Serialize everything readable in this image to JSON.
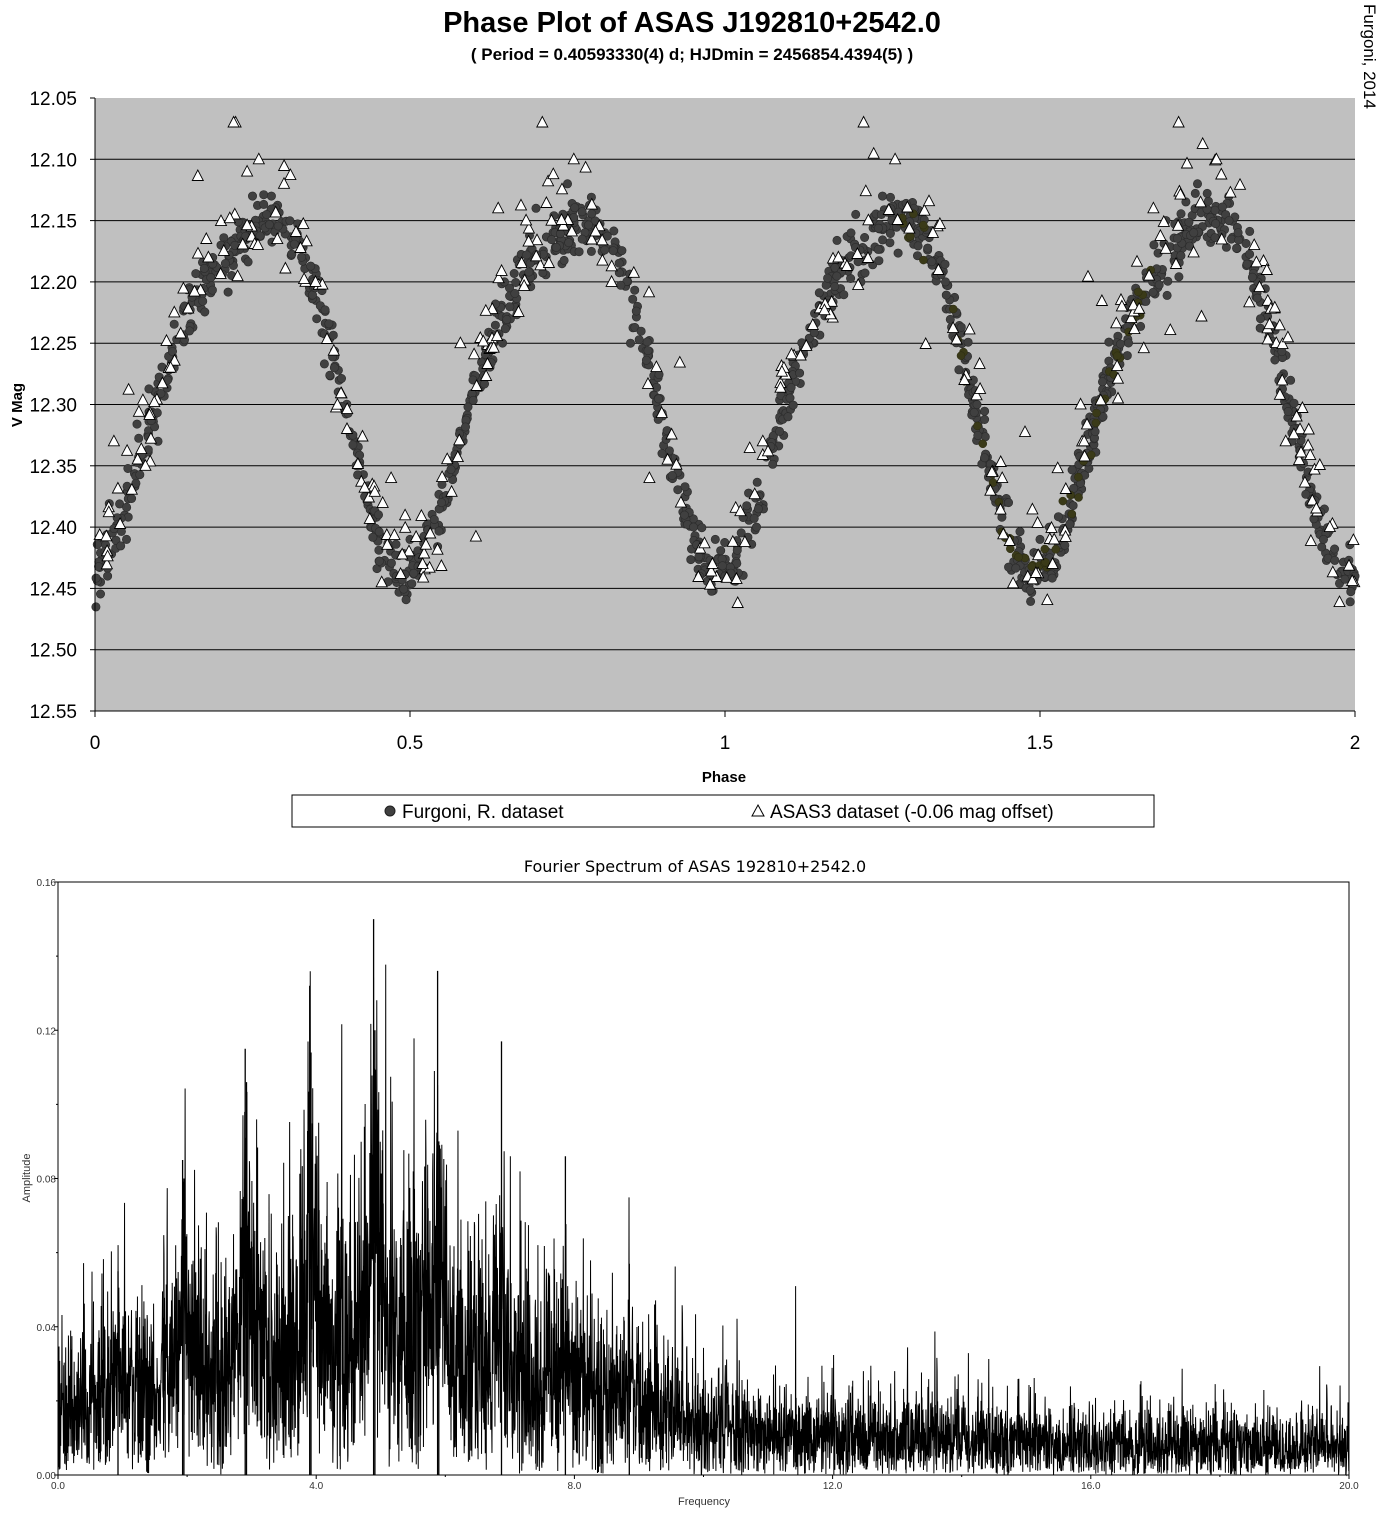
{
  "chart_data": [
    {
      "type": "scatter",
      "title": "Phase Plot of ASAS J192810+2542.0",
      "subtitle": "( Period =  0.40593330(4) d; HJDmin = 2456854.4394(5) )",
      "credit": "Furgoni, 2014",
      "xlabel": "Phase",
      "ylabel": "V Mag",
      "xlim": [
        0,
        2
      ],
      "ylim": [
        12.05,
        12.55
      ],
      "y_inverted": true,
      "x_ticks": [
        "0",
        "0.5",
        "1",
        "1.5",
        "2"
      ],
      "y_ticks": [
        "12.05",
        "12.10",
        "12.15",
        "12.20",
        "12.25",
        "12.30",
        "12.35",
        "12.40",
        "12.45",
        "12.50",
        "12.55"
      ],
      "grid": "horizontal",
      "legend_position": "bottom",
      "colors": {
        "plot_background": "#c0c0c0",
        "furgoni_marker": "#404040",
        "asas_marker": "#ffffff"
      },
      "series": [
        {
          "name": "Furgoni, R. dataset",
          "marker": "circle",
          "model": {
            "mean": 12.275,
            "amp1": 0.14,
            "amp2": 0.025,
            "period_phase": 0.5
          },
          "points": [
            [
              0.02,
              12.44
            ],
            [
              0.05,
              12.41
            ],
            [
              0.1,
              12.33
            ],
            [
              0.15,
              12.24
            ],
            [
              0.2,
              12.17
            ],
            [
              0.25,
              12.13
            ],
            [
              0.28,
              12.13
            ],
            [
              0.32,
              12.16
            ],
            [
              0.38,
              12.27
            ],
            [
              0.42,
              12.35
            ],
            [
              0.45,
              12.39
            ],
            [
              0.5,
              12.41
            ],
            [
              0.55,
              12.38
            ],
            [
              0.6,
              12.28
            ],
            [
              0.65,
              12.2
            ],
            [
              0.7,
              12.14
            ],
            [
              0.75,
              12.12
            ],
            [
              0.8,
              12.16
            ],
            [
              0.85,
              12.25
            ],
            [
              0.9,
              12.34
            ],
            [
              0.95,
              12.4
            ],
            [
              1.0,
              12.44
            ],
            [
              1.05,
              12.4
            ],
            [
              1.1,
              12.31
            ],
            [
              1.15,
              12.22
            ],
            [
              1.2,
              12.16
            ],
            [
              1.25,
              12.13
            ],
            [
              1.3,
              12.14
            ],
            [
              1.35,
              12.2
            ],
            [
              1.4,
              12.3
            ],
            [
              1.45,
              12.38
            ],
            [
              1.5,
              12.41
            ],
            [
              1.55,
              12.39
            ],
            [
              1.6,
              12.31
            ],
            [
              1.65,
              12.22
            ],
            [
              1.7,
              12.15
            ],
            [
              1.75,
              12.12
            ],
            [
              1.8,
              12.15
            ],
            [
              1.85,
              12.23
            ],
            [
              1.9,
              12.33
            ],
            [
              1.95,
              12.41
            ],
            [
              2.0,
              12.44
            ]
          ]
        },
        {
          "name": "ASAS3 dataset (-0.06 mag offset)",
          "marker": "triangle",
          "model": {
            "mean": 12.275,
            "amp1": 0.14,
            "amp2": 0.025,
            "period_phase": 0.5
          },
          "points": [
            [
              0.03,
              12.33
            ],
            [
              0.08,
              12.35
            ],
            [
              0.12,
              12.27
            ],
            [
              0.18,
              12.18
            ],
            [
              0.22,
              12.07
            ],
            [
              0.26,
              12.1
            ],
            [
              0.3,
              12.12
            ],
            [
              0.35,
              12.2
            ],
            [
              0.4,
              12.32
            ],
            [
              0.47,
              12.36
            ],
            [
              0.52,
              12.43
            ],
            [
              0.58,
              12.25
            ],
            [
              0.64,
              12.14
            ],
            [
              0.71,
              12.07
            ],
            [
              0.76,
              12.1
            ],
            [
              0.82,
              12.2
            ],
            [
              0.88,
              12.36
            ],
            [
              0.93,
              12.38
            ],
            [
              0.98,
              12.43
            ],
            [
              1.06,
              12.33
            ],
            [
              1.12,
              12.26
            ],
            [
              1.18,
              12.18
            ],
            [
              1.22,
              12.07
            ],
            [
              1.27,
              12.1
            ],
            [
              1.33,
              12.16
            ],
            [
              1.38,
              12.28
            ],
            [
              1.44,
              12.36
            ],
            [
              1.52,
              12.43
            ],
            [
              1.57,
              12.33
            ],
            [
              1.63,
              12.22
            ],
            [
              1.68,
              12.14
            ],
            [
              1.72,
              12.07
            ],
            [
              1.78,
              12.1
            ],
            [
              1.84,
              12.17
            ],
            [
              1.89,
              12.33
            ],
            [
              1.96,
              12.4
            ]
          ]
        }
      ]
    },
    {
      "type": "line",
      "title": "Fourier Spectrum of ASAS 192810+2542.0",
      "xlabel": "Frequency",
      "ylabel": "Amplitude",
      "xlim": [
        0.0,
        20.0
      ],
      "ylim": [
        0.0,
        0.16
      ],
      "x_ticks": [
        "0.0",
        "4.0",
        "8.0",
        "12.0",
        "16.0",
        "20.0"
      ],
      "y_ticks": [
        "0.00",
        "0.04",
        "0.08",
        "0.12",
        "0.16"
      ],
      "grid": "none",
      "colors": {
        "line": "#000000",
        "background": "#ffffff"
      },
      "series": [
        {
          "name": "Amplitude",
          "noise_envelope": [
            [
              0.0,
              0.02
            ],
            [
              2.0,
              0.025
            ],
            [
              3.0,
              0.032
            ],
            [
              4.0,
              0.036
            ],
            [
              5.0,
              0.038
            ],
            [
              6.0,
              0.034
            ],
            [
              7.0,
              0.03
            ],
            [
              8.0,
              0.024
            ],
            [
              9.0,
              0.018
            ],
            [
              10.0,
              0.014
            ],
            [
              11.0,
              0.012
            ],
            [
              12.0,
              0.011
            ],
            [
              14.0,
              0.01
            ],
            [
              16.0,
              0.009
            ],
            [
              18.0,
              0.009
            ],
            [
              20.0,
              0.008
            ]
          ],
          "peaks": [
            [
              0.93,
              0.055
            ],
            [
              1.93,
              0.085
            ],
            [
              1.95,
              0.08
            ],
            [
              2.9,
              0.115
            ],
            [
              2.92,
              0.106
            ],
            [
              3.9,
              0.132
            ],
            [
              3.92,
              0.114
            ],
            [
              4.89,
              0.15
            ],
            [
              4.91,
              0.12
            ],
            [
              5.88,
              0.136
            ],
            [
              5.9,
              0.09
            ],
            [
              6.87,
              0.117
            ],
            [
              7.86,
              0.086
            ],
            [
              8.85,
              0.057
            ]
          ]
        }
      ]
    }
  ],
  "legend": {
    "items": [
      "Furgoni, R. dataset",
      "ASAS3 dataset (-0.06 mag offset)"
    ]
  }
}
